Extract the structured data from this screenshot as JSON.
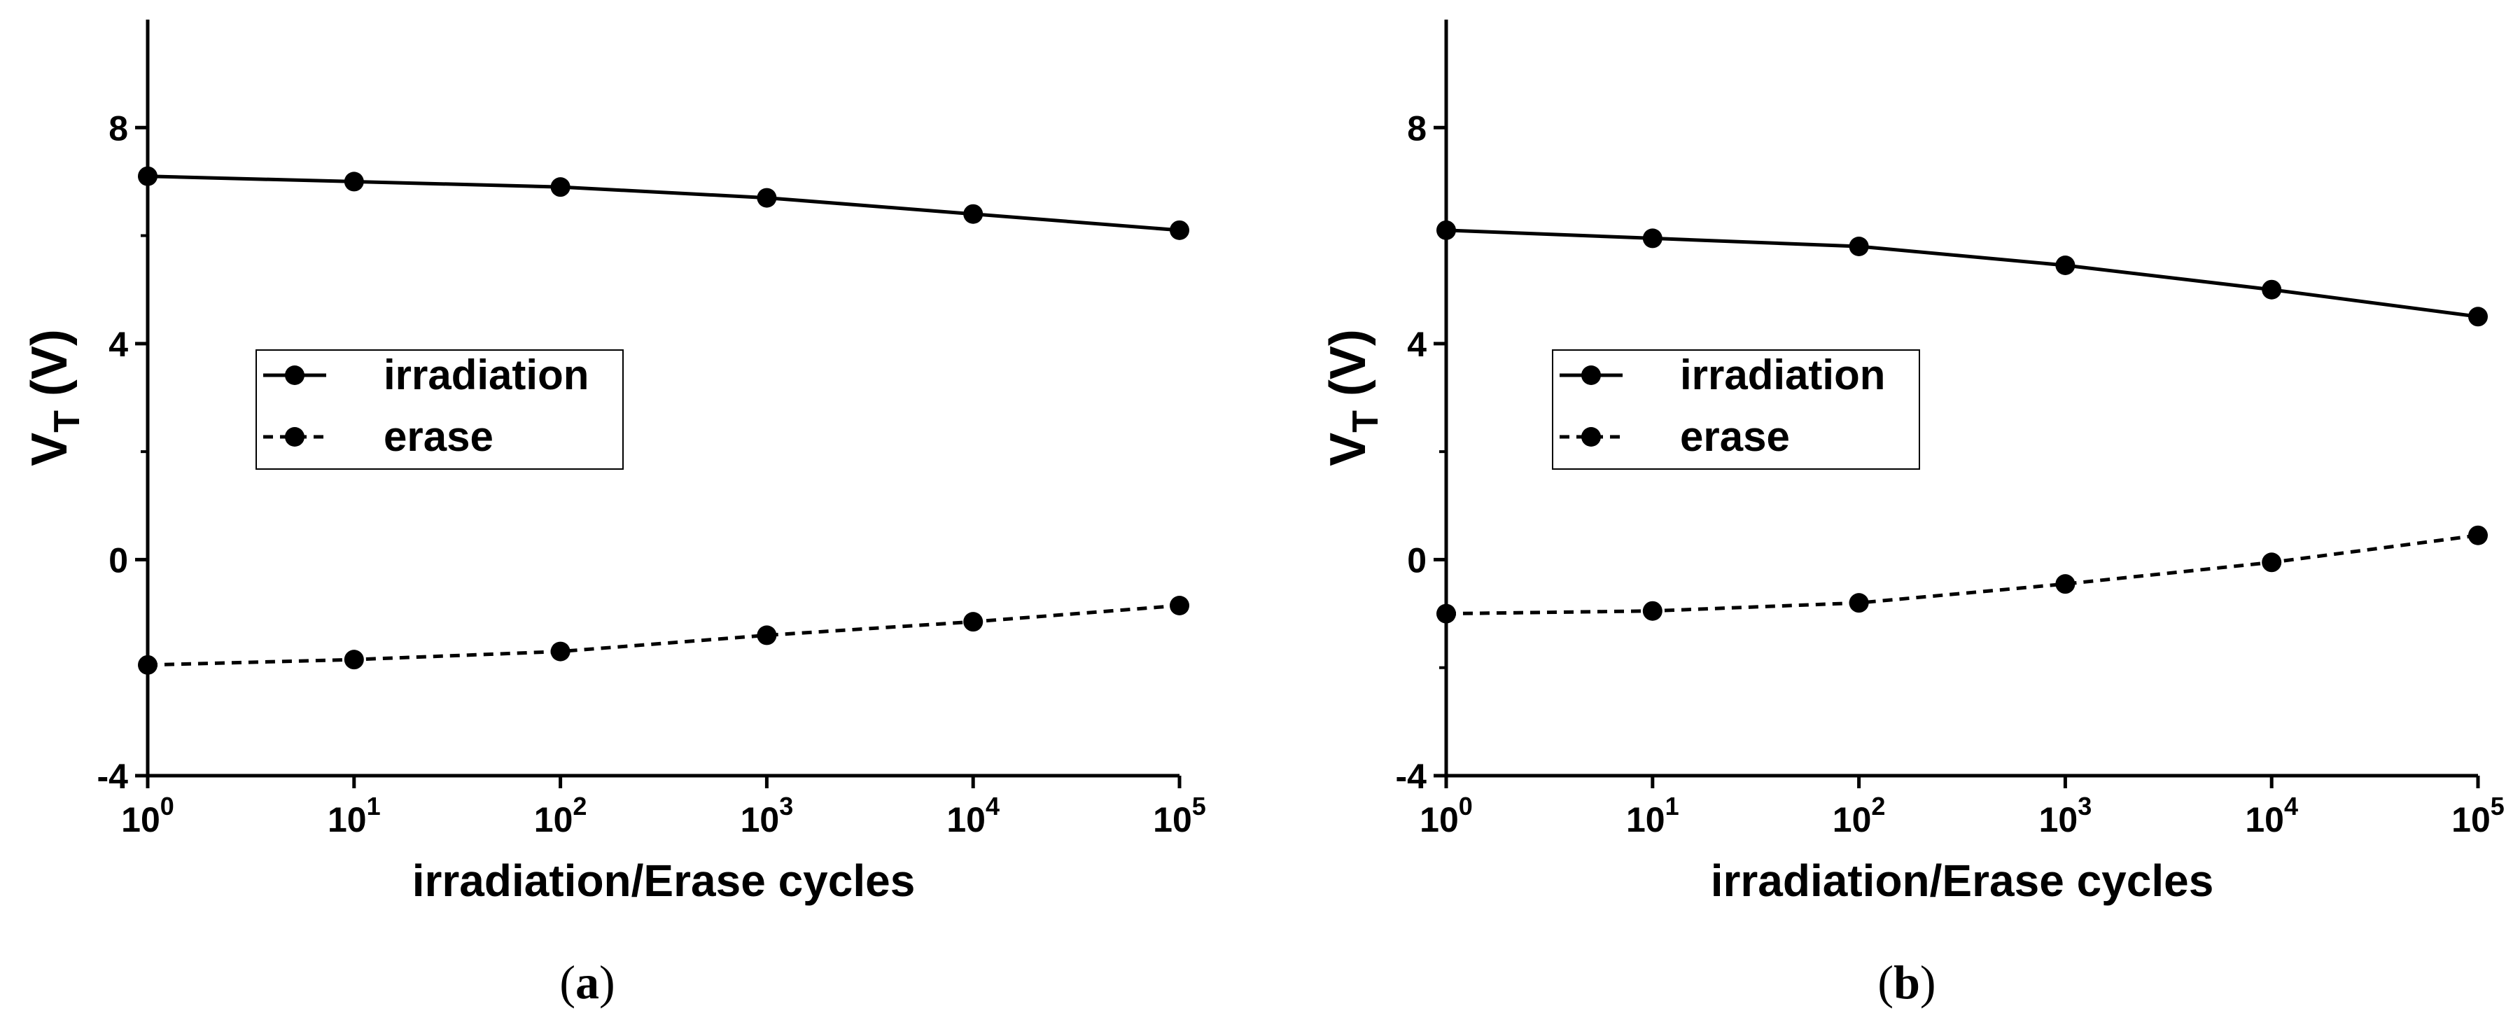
{
  "chart_data": [
    {
      "type": "line",
      "panel_label": "a",
      "xscale": "log",
      "x_exponents": [
        0,
        1,
        2,
        3,
        4,
        5
      ],
      "x_tick_base": "10",
      "xlabel": "irradiation/Erase cycles",
      "ylabel": {
        "main": "V",
        "subscript": "T",
        "unit": "(V)"
      },
      "ylim": [
        -4,
        10
      ],
      "yticks": [
        -4,
        0,
        4,
        8
      ],
      "legend": {
        "position": "left-middle"
      },
      "series": [
        {
          "name": "irradiation",
          "style": "solid",
          "values": [
            7.1,
            7.0,
            6.9,
            6.7,
            6.4,
            6.1
          ]
        },
        {
          "name": "erase",
          "style": "dashed",
          "values": [
            -1.95,
            -1.85,
            -1.7,
            -1.4,
            -1.15,
            -0.85
          ]
        }
      ]
    },
    {
      "type": "line",
      "panel_label": "b",
      "xscale": "log",
      "x_exponents": [
        0,
        1,
        2,
        3,
        4,
        5
      ],
      "x_tick_base": "10",
      "xlabel": "irradiation/Erase cycles",
      "ylabel": {
        "main": "V",
        "subscript": "T",
        "unit": "(V)"
      },
      "ylim": [
        -4,
        10
      ],
      "yticks": [
        -4,
        0,
        4,
        8
      ],
      "legend": {
        "position": "left-middle"
      },
      "series": [
        {
          "name": "irradiation",
          "style": "solid",
          "values": [
            6.1,
            5.95,
            5.8,
            5.45,
            5.0,
            4.5
          ]
        },
        {
          "name": "erase",
          "style": "dashed",
          "values": [
            -1.0,
            -0.95,
            -0.8,
            -0.45,
            -0.05,
            0.45
          ]
        }
      ]
    }
  ]
}
